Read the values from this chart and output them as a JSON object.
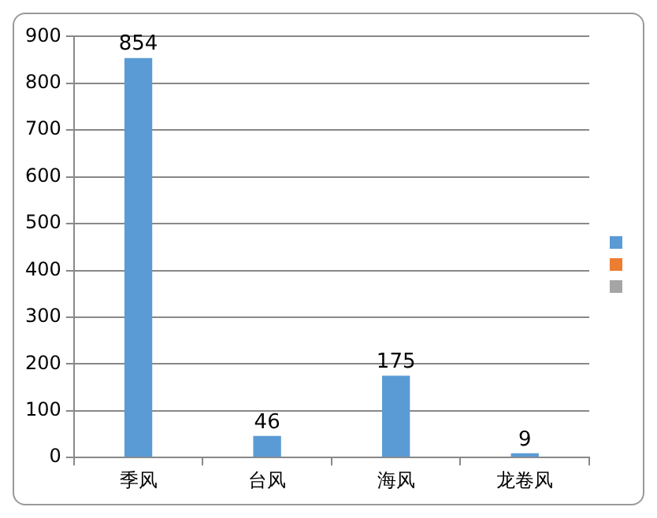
{
  "chart_data": {
    "type": "bar",
    "categories": [
      "季风",
      "台风",
      "海风",
      "龙卷风"
    ],
    "series": [
      {
        "color": "#5b9bd5",
        "values": [
          854,
          46,
          175,
          9
        ]
      }
    ],
    "ylim": [
      0,
      900
    ],
    "yticks": [
      0,
      100,
      200,
      300,
      400,
      500,
      600,
      700,
      800,
      900
    ],
    "grid": "y",
    "data_labels": true
  }
}
